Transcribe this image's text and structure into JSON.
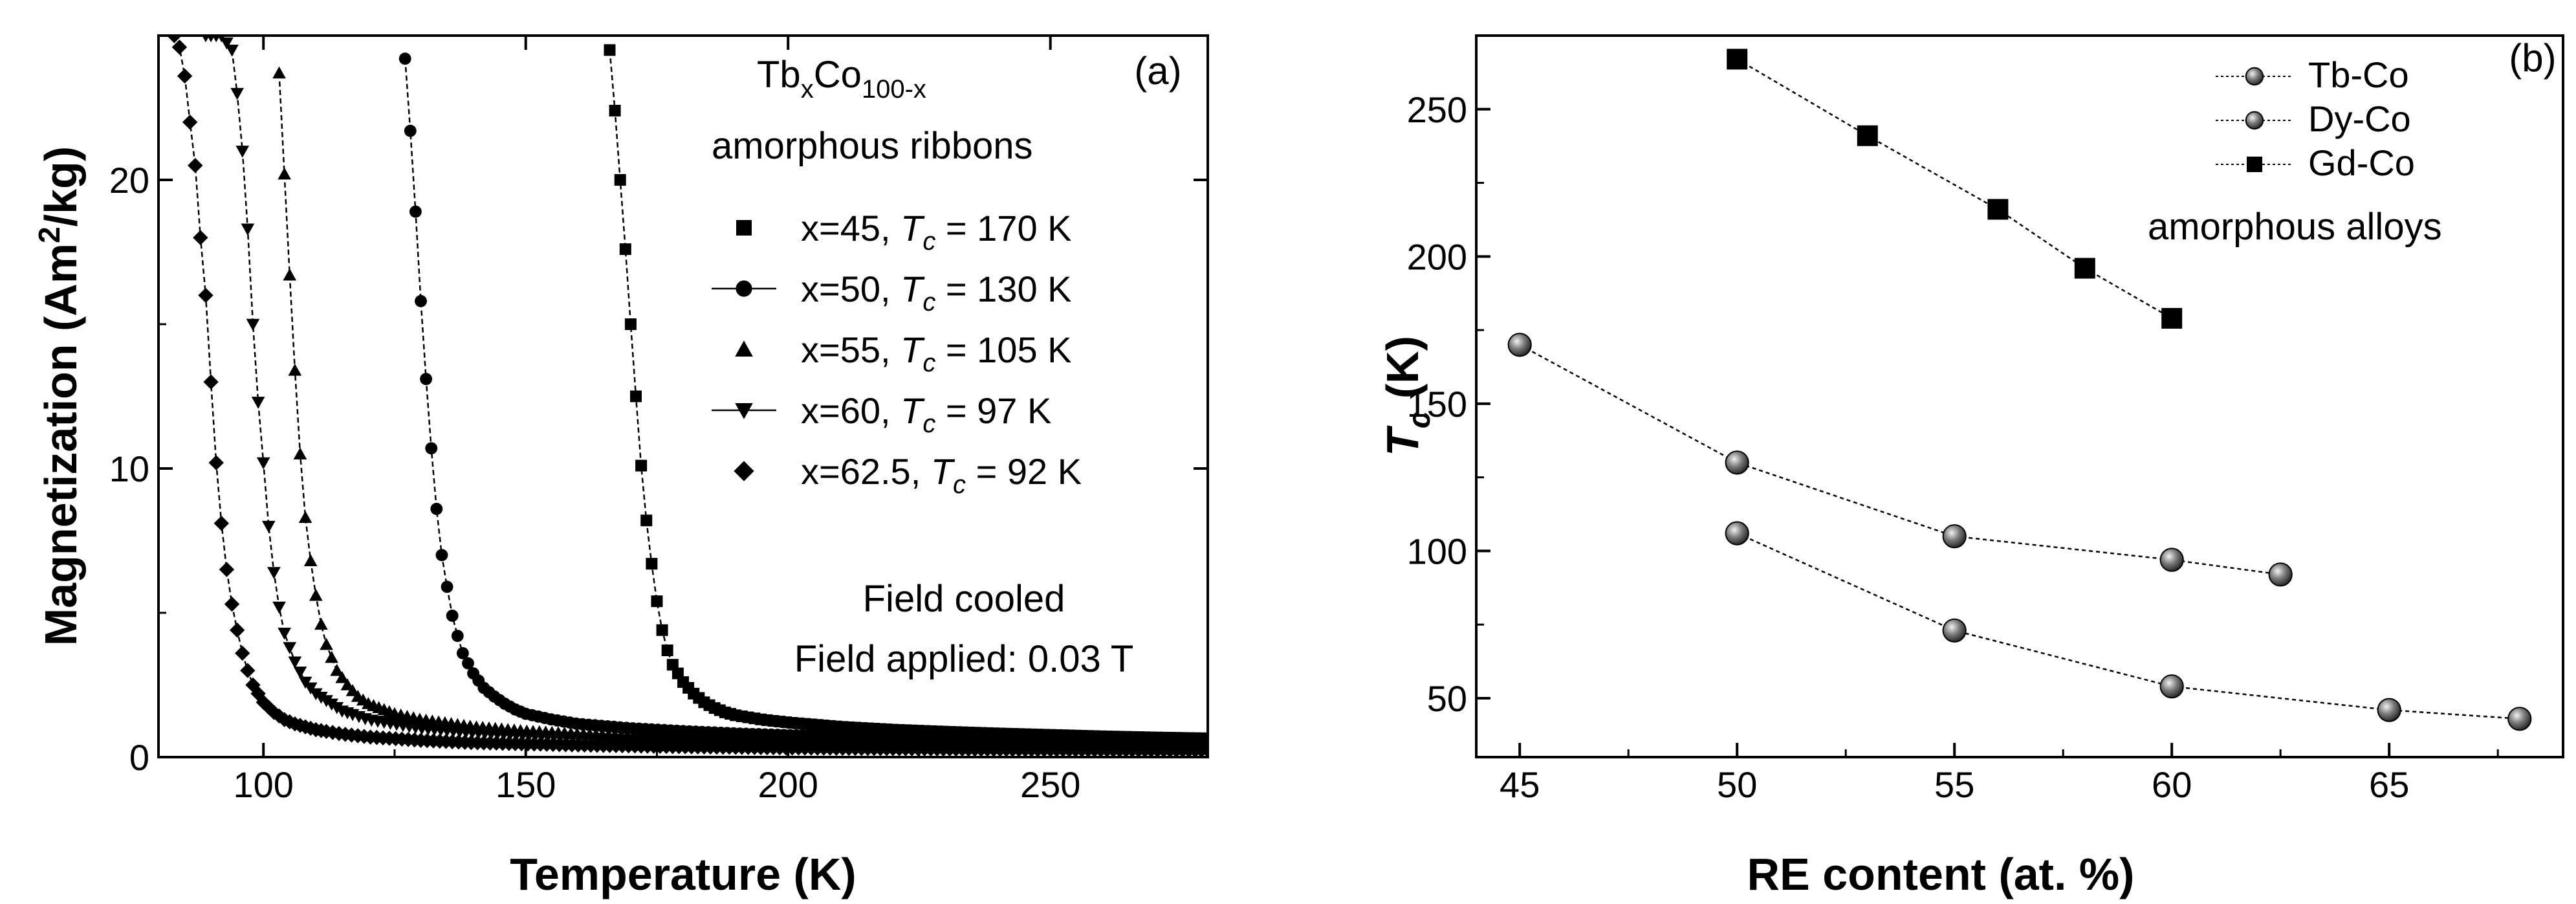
{
  "chart_data": [
    {
      "type": "line",
      "panel_label": "(a)",
      "xlabel": "Temperature (K)",
      "ylabel_main": "Magnetization (Am",
      "ylabel_sup": "2",
      "ylabel_tail": "/kg)",
      "xlim": [
        80,
        280
      ],
      "ylim": [
        0,
        25
      ],
      "xticks": [
        100,
        150,
        200,
        250
      ],
      "yticks": [
        0,
        10,
        20
      ],
      "annotations": {
        "formula_tb": "Tb",
        "formula_x": "x",
        "formula_co": "Co",
        "formula_sub": "100-x",
        "subtitle": "amorphous ribbons",
        "field_cooled": "Field cooled",
        "field_applied": "Field applied: 0.03 T"
      },
      "series": [
        {
          "name": "x=45",
          "x_label": "x=45, ",
          "tc_label": "T",
          "tc_sub": "c",
          "tc_value": " = 170 K",
          "tc": 170,
          "marker": "square",
          "x_start": 166,
          "x": [
            166,
            167,
            168,
            169,
            170,
            171,
            172,
            173,
            174,
            175,
            176,
            177,
            178,
            180,
            182,
            184,
            186,
            188,
            190,
            195,
            200,
            210,
            220,
            230,
            240,
            250,
            260,
            270,
            280
          ],
          "y": [
            24.5,
            22.4,
            20.0,
            17.6,
            15.0,
            12.5,
            10.1,
            8.2,
            6.7,
            5.4,
            4.4,
            3.7,
            3.2,
            2.6,
            2.2,
            1.9,
            1.7,
            1.55,
            1.45,
            1.3,
            1.2,
            1.05,
            0.95,
            0.88,
            0.82,
            0.77,
            0.72,
            0.68,
            0.65
          ]
        },
        {
          "name": "x=50",
          "x_label": "x=50, ",
          "tc_label": "T",
          "tc_sub": "c",
          "tc_value": " = 130 K",
          "tc": 130,
          "marker": "circle",
          "x_start": 127,
          "x": [
            127,
            128,
            129,
            130,
            131,
            132,
            133,
            134,
            135,
            136,
            137,
            138,
            140,
            142,
            144,
            146,
            148,
            150,
            155,
            160,
            170,
            180,
            190,
            200,
            220,
            240,
            260,
            280
          ],
          "y": [
            24.2,
            21.7,
            18.9,
            15.8,
            13.1,
            10.7,
            8.6,
            7.0,
            5.9,
            4.9,
            4.2,
            3.6,
            2.9,
            2.4,
            2.1,
            1.85,
            1.65,
            1.5,
            1.3,
            1.15,
            1.0,
            0.9,
            0.82,
            0.76,
            0.67,
            0.6,
            0.55,
            0.5
          ]
        },
        {
          "name": "x=55",
          "x_label": "x=55, ",
          "tc_label": "T",
          "tc_sub": "c",
          "tc_value": " = 105 K",
          "tc": 105,
          "marker": "triangle-up",
          "x_start": 103,
          "x": [
            103,
            104,
            105,
            106,
            107,
            108,
            109,
            110,
            111,
            112,
            114,
            116,
            118,
            120,
            125,
            130,
            140,
            150,
            160,
            180,
            200,
            220,
            240,
            260,
            280
          ],
          "y": [
            23.7,
            20.2,
            16.7,
            13.4,
            10.5,
            8.3,
            6.8,
            5.6,
            4.6,
            3.9,
            3.0,
            2.5,
            2.1,
            1.85,
            1.5,
            1.3,
            1.05,
            0.9,
            0.8,
            0.66,
            0.57,
            0.5,
            0.45,
            0.41,
            0.38
          ]
        },
        {
          "name": "x=60",
          "x_label": "x=60, ",
          "tc_label": "T",
          "tc_sub": "c",
          "tc_value": " = 97 K",
          "tc": 97,
          "marker": "triangle-down",
          "x_start": 89,
          "x": [
            89,
            92,
            94,
            95,
            96,
            97,
            98,
            99,
            100,
            101,
            102,
            103,
            104,
            106,
            108,
            110,
            115,
            120,
            130,
            140,
            150,
            170,
            200,
            230,
            260,
            280
          ],
          "y": [
            25,
            25,
            24.5,
            23.0,
            21.0,
            18.3,
            15.0,
            12.3,
            10.2,
            8.0,
            6.4,
            5.2,
            4.3,
            3.3,
            2.6,
            2.2,
            1.6,
            1.3,
            1.0,
            0.85,
            0.75,
            0.6,
            0.48,
            0.4,
            0.35,
            0.32
          ]
        },
        {
          "name": "x=62.5",
          "x_label": "x=62.5, ",
          "tc_label": "T",
          "tc_sub": "c",
          "tc_value": " = 92 K",
          "tc": 92,
          "marker": "diamond",
          "x_start": 83,
          "x": [
            83,
            84,
            85,
            86,
            87,
            88,
            89,
            90,
            91,
            92,
            93,
            94,
            95,
            96,
            97,
            98,
            100,
            102,
            104,
            106,
            110,
            115,
            120,
            130,
            140,
            160,
            180,
            200,
            240,
            280
          ],
          "y": [
            25,
            24.6,
            23.6,
            22.0,
            20.5,
            18.0,
            16.0,
            13.0,
            10.2,
            8.1,
            6.5,
            5.3,
            4.4,
            3.6,
            3.0,
            2.5,
            1.9,
            1.55,
            1.3,
            1.15,
            0.95,
            0.8,
            0.7,
            0.58,
            0.5,
            0.42,
            0.36,
            0.32,
            0.27,
            0.24
          ]
        }
      ]
    },
    {
      "type": "line",
      "panel_label": "(b)",
      "xlabel": "RE content (at. %)",
      "ylabel_main": "T",
      "ylabel_sub": "c",
      "ylabel_tail": " (K)",
      "xlim": [
        44,
        69
      ],
      "ylim": [
        30,
        275
      ],
      "xticks": [
        45,
        50,
        55,
        60,
        65
      ],
      "yticks": [
        50,
        100,
        150,
        200,
        250
      ],
      "annotation": "amorphous alloys",
      "series": [
        {
          "name": "Tb-Co",
          "marker": "sphere",
          "x": [
            45,
            50,
            55,
            60,
            62.5
          ],
          "y": [
            170,
            130,
            105,
            97,
            92
          ]
        },
        {
          "name": "Dy-Co",
          "marker": "sphere",
          "x": [
            50,
            55,
            60,
            65,
            68
          ],
          "y": [
            106,
            73,
            54,
            46,
            43
          ]
        },
        {
          "name": "Gd-Co",
          "marker": "square",
          "x": [
            50,
            53,
            56,
            58,
            60
          ],
          "y": [
            267,
            241,
            216,
            196,
            179
          ]
        }
      ]
    }
  ]
}
